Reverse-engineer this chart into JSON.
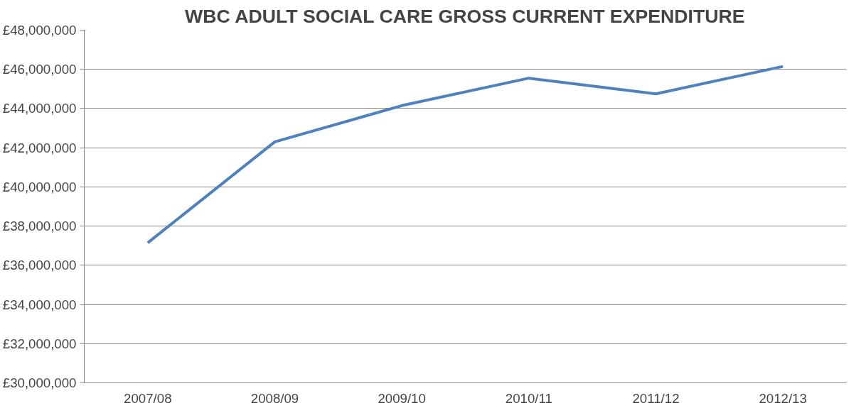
{
  "chart_data": {
    "type": "line",
    "title": "WBC ADULT SOCIAL CARE GROSS CURRENT EXPENDITURE",
    "categories": [
      "2007/08",
      "2008/09",
      "2009/10",
      "2010/11",
      "2011/12",
      "2012/13"
    ],
    "series": [
      {
        "color": "#4f81bd",
        "values": [
          37150000,
          42300000,
          44150000,
          45550000,
          44750000,
          46150000
        ]
      }
    ],
    "ylim": [
      30000000,
      48000000
    ],
    "yticks": [
      {
        "value": 30000000,
        "label": "£30,000,000"
      },
      {
        "value": 32000000,
        "label": "£32,000,000"
      },
      {
        "value": 34000000,
        "label": "£34,000,000"
      },
      {
        "value": 36000000,
        "label": "£36,000,000"
      },
      {
        "value": 38000000,
        "label": "£38,000,000"
      },
      {
        "value": 40000000,
        "label": "£40,000,000"
      },
      {
        "value": 42000000,
        "label": "£42,000,000"
      },
      {
        "value": 44000000,
        "label": "£44,000,000"
      },
      {
        "value": 46000000,
        "label": "£46,000,000"
      },
      {
        "value": 48000000,
        "label": "£48,000,000"
      }
    ],
    "grid": "y",
    "marker": "none",
    "line_style": "solid"
  }
}
